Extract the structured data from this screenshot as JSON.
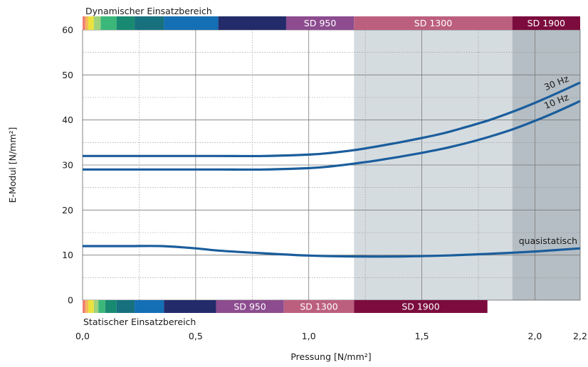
{
  "chart_data": {
    "type": "line",
    "ylabel": "E-Modul [N/mm²]",
    "xlabel": "Pressung [N/mm²]",
    "xlim": [
      0,
      2.2
    ],
    "ylim": [
      0,
      60
    ],
    "x_ticks": [
      0.0,
      0.5,
      1.0,
      1.5,
      2.0,
      2.2
    ],
    "x_tick_labels": [
      "0,0",
      "0,5",
      "1,0",
      "1,5",
      "2,0",
      "2,2"
    ],
    "y_ticks": [
      0,
      10,
      20,
      30,
      40,
      50,
      60
    ],
    "y_tick_labels": [
      "0",
      "10",
      "20",
      "30",
      "40",
      "50",
      "60"
    ],
    "grid": true,
    "series": [
      {
        "name": "30 Hz",
        "color": "#1a5d9c",
        "x": [
          0.0,
          0.2,
          0.4,
          0.6,
          0.8,
          1.0,
          1.1,
          1.2,
          1.3,
          1.4,
          1.5,
          1.6,
          1.7,
          1.8,
          1.9,
          2.0,
          2.1,
          2.2
        ],
        "y": [
          32,
          32,
          32,
          32,
          32,
          32.3,
          32.7,
          33.3,
          34.1,
          35,
          36,
          37.1,
          38.5,
          40,
          41.8,
          43.8,
          46,
          48.3
        ]
      },
      {
        "name": "10 Hz",
        "color": "#1a5d9c",
        "x": [
          0.0,
          0.2,
          0.4,
          0.6,
          0.8,
          1.0,
          1.1,
          1.2,
          1.3,
          1.4,
          1.5,
          1.6,
          1.7,
          1.8,
          1.9,
          2.0,
          2.1,
          2.2
        ],
        "y": [
          29,
          29,
          29,
          29,
          29,
          29.3,
          29.7,
          30.3,
          31,
          31.8,
          32.7,
          33.7,
          34.9,
          36.3,
          37.9,
          39.8,
          41.9,
          44.2
        ]
      },
      {
        "name": "quasistatisch",
        "color": "#1a5d9c",
        "x": [
          0.0,
          0.2,
          0.35,
          0.5,
          0.6,
          0.8,
          1.0,
          1.2,
          1.4,
          1.6,
          1.8,
          2.0,
          2.2
        ],
        "y": [
          12,
          12,
          12,
          11.5,
          11,
          10.4,
          9.9,
          9.7,
          9.7,
          9.9,
          10.3,
          10.8,
          11.5
        ]
      }
    ],
    "shaded_regions": [
      {
        "x0": 1.2,
        "x1": 1.9,
        "color": "#d5dce0"
      },
      {
        "x0": 1.9,
        "x1": 2.2,
        "color": "#b5bec4"
      }
    ],
    "bands": {
      "dynamic": {
        "label": "Dynamischer Einsatzbereich",
        "segments": [
          {
            "x0": 0.0,
            "x1": 0.012,
            "color": "#f07d74",
            "label": ""
          },
          {
            "x0": 0.012,
            "x1": 0.025,
            "color": "#f5b75a",
            "label": ""
          },
          {
            "x0": 0.025,
            "x1": 0.05,
            "color": "#ece23e",
            "label": ""
          },
          {
            "x0": 0.05,
            "x1": 0.08,
            "color": "#9ed27c",
            "label": ""
          },
          {
            "x0": 0.08,
            "x1": 0.15,
            "color": "#3bb77a",
            "label": ""
          },
          {
            "x0": 0.15,
            "x1": 0.23,
            "color": "#198a72",
            "label": ""
          },
          {
            "x0": 0.23,
            "x1": 0.36,
            "color": "#17707e",
            "label": ""
          },
          {
            "x0": 0.36,
            "x1": 0.6,
            "color": "#146fb5",
            "label": ""
          },
          {
            "x0": 0.6,
            "x1": 0.9,
            "color": "#232b6a",
            "label": ""
          },
          {
            "x0": 0.9,
            "x1": 1.2,
            "color": "#8c4c8f",
            "label": "SD 950"
          },
          {
            "x0": 1.2,
            "x1": 1.9,
            "color": "#bc5f7f",
            "label": "SD 1300"
          },
          {
            "x0": 1.9,
            "x1": 2.2,
            "color": "#7c0c3e",
            "label": "SD 1900"
          }
        ]
      },
      "static": {
        "label": "Statischer Einsatzbereich",
        "segments": [
          {
            "x0": 0.0,
            "x1": 0.012,
            "color": "#f07d74",
            "label": ""
          },
          {
            "x0": 0.012,
            "x1": 0.025,
            "color": "#f5b75a",
            "label": ""
          },
          {
            "x0": 0.025,
            "x1": 0.05,
            "color": "#ece23e",
            "label": ""
          },
          {
            "x0": 0.05,
            "x1": 0.07,
            "color": "#9ed27c",
            "label": ""
          },
          {
            "x0": 0.07,
            "x1": 0.1,
            "color": "#3bb77a",
            "label": ""
          },
          {
            "x0": 0.1,
            "x1": 0.15,
            "color": "#198a72",
            "label": ""
          },
          {
            "x0": 0.15,
            "x1": 0.23,
            "color": "#17707e",
            "label": ""
          },
          {
            "x0": 0.23,
            "x1": 0.36,
            "color": "#146fb5",
            "label": ""
          },
          {
            "x0": 0.36,
            "x1": 0.59,
            "color": "#232b6a",
            "label": ""
          },
          {
            "x0": 0.59,
            "x1": 0.89,
            "color": "#8c4c8f",
            "label": "SD 950"
          },
          {
            "x0": 0.89,
            "x1": 1.2,
            "color": "#bc5f7f",
            "label": "SD 1300"
          },
          {
            "x0": 1.2,
            "x1": 1.79,
            "color": "#7c0c3e",
            "label": "SD 1900"
          }
        ]
      }
    }
  }
}
